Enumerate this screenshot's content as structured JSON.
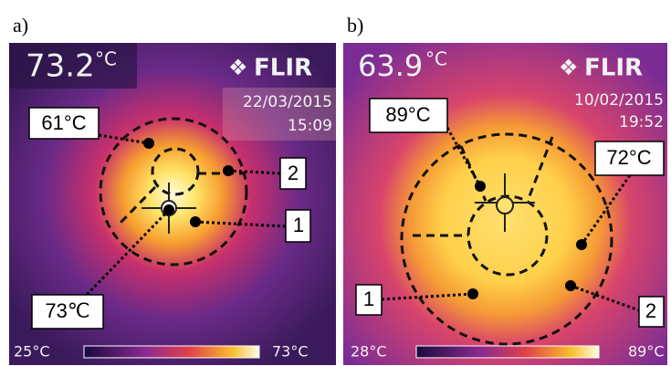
{
  "panels": [
    {
      "label": "a)",
      "reading": "73.2",
      "unit": "°C",
      "logo": "FLIR",
      "date": "22/03/2015",
      "time": "15:09",
      "callouts": [
        "61°C",
        "2",
        "1",
        "73℃"
      ],
      "scale": {
        "min": "25°C",
        "max": "73°C"
      }
    },
    {
      "label": "b)",
      "reading": "63.9",
      "unit": "°C",
      "logo": "FLIR",
      "date": "10/02/2015",
      "time": "19:52",
      "callouts": [
        "89°C",
        "72°C",
        "1",
        "2"
      ],
      "scale": {
        "min": "28°C",
        "max": "89°C"
      }
    }
  ]
}
